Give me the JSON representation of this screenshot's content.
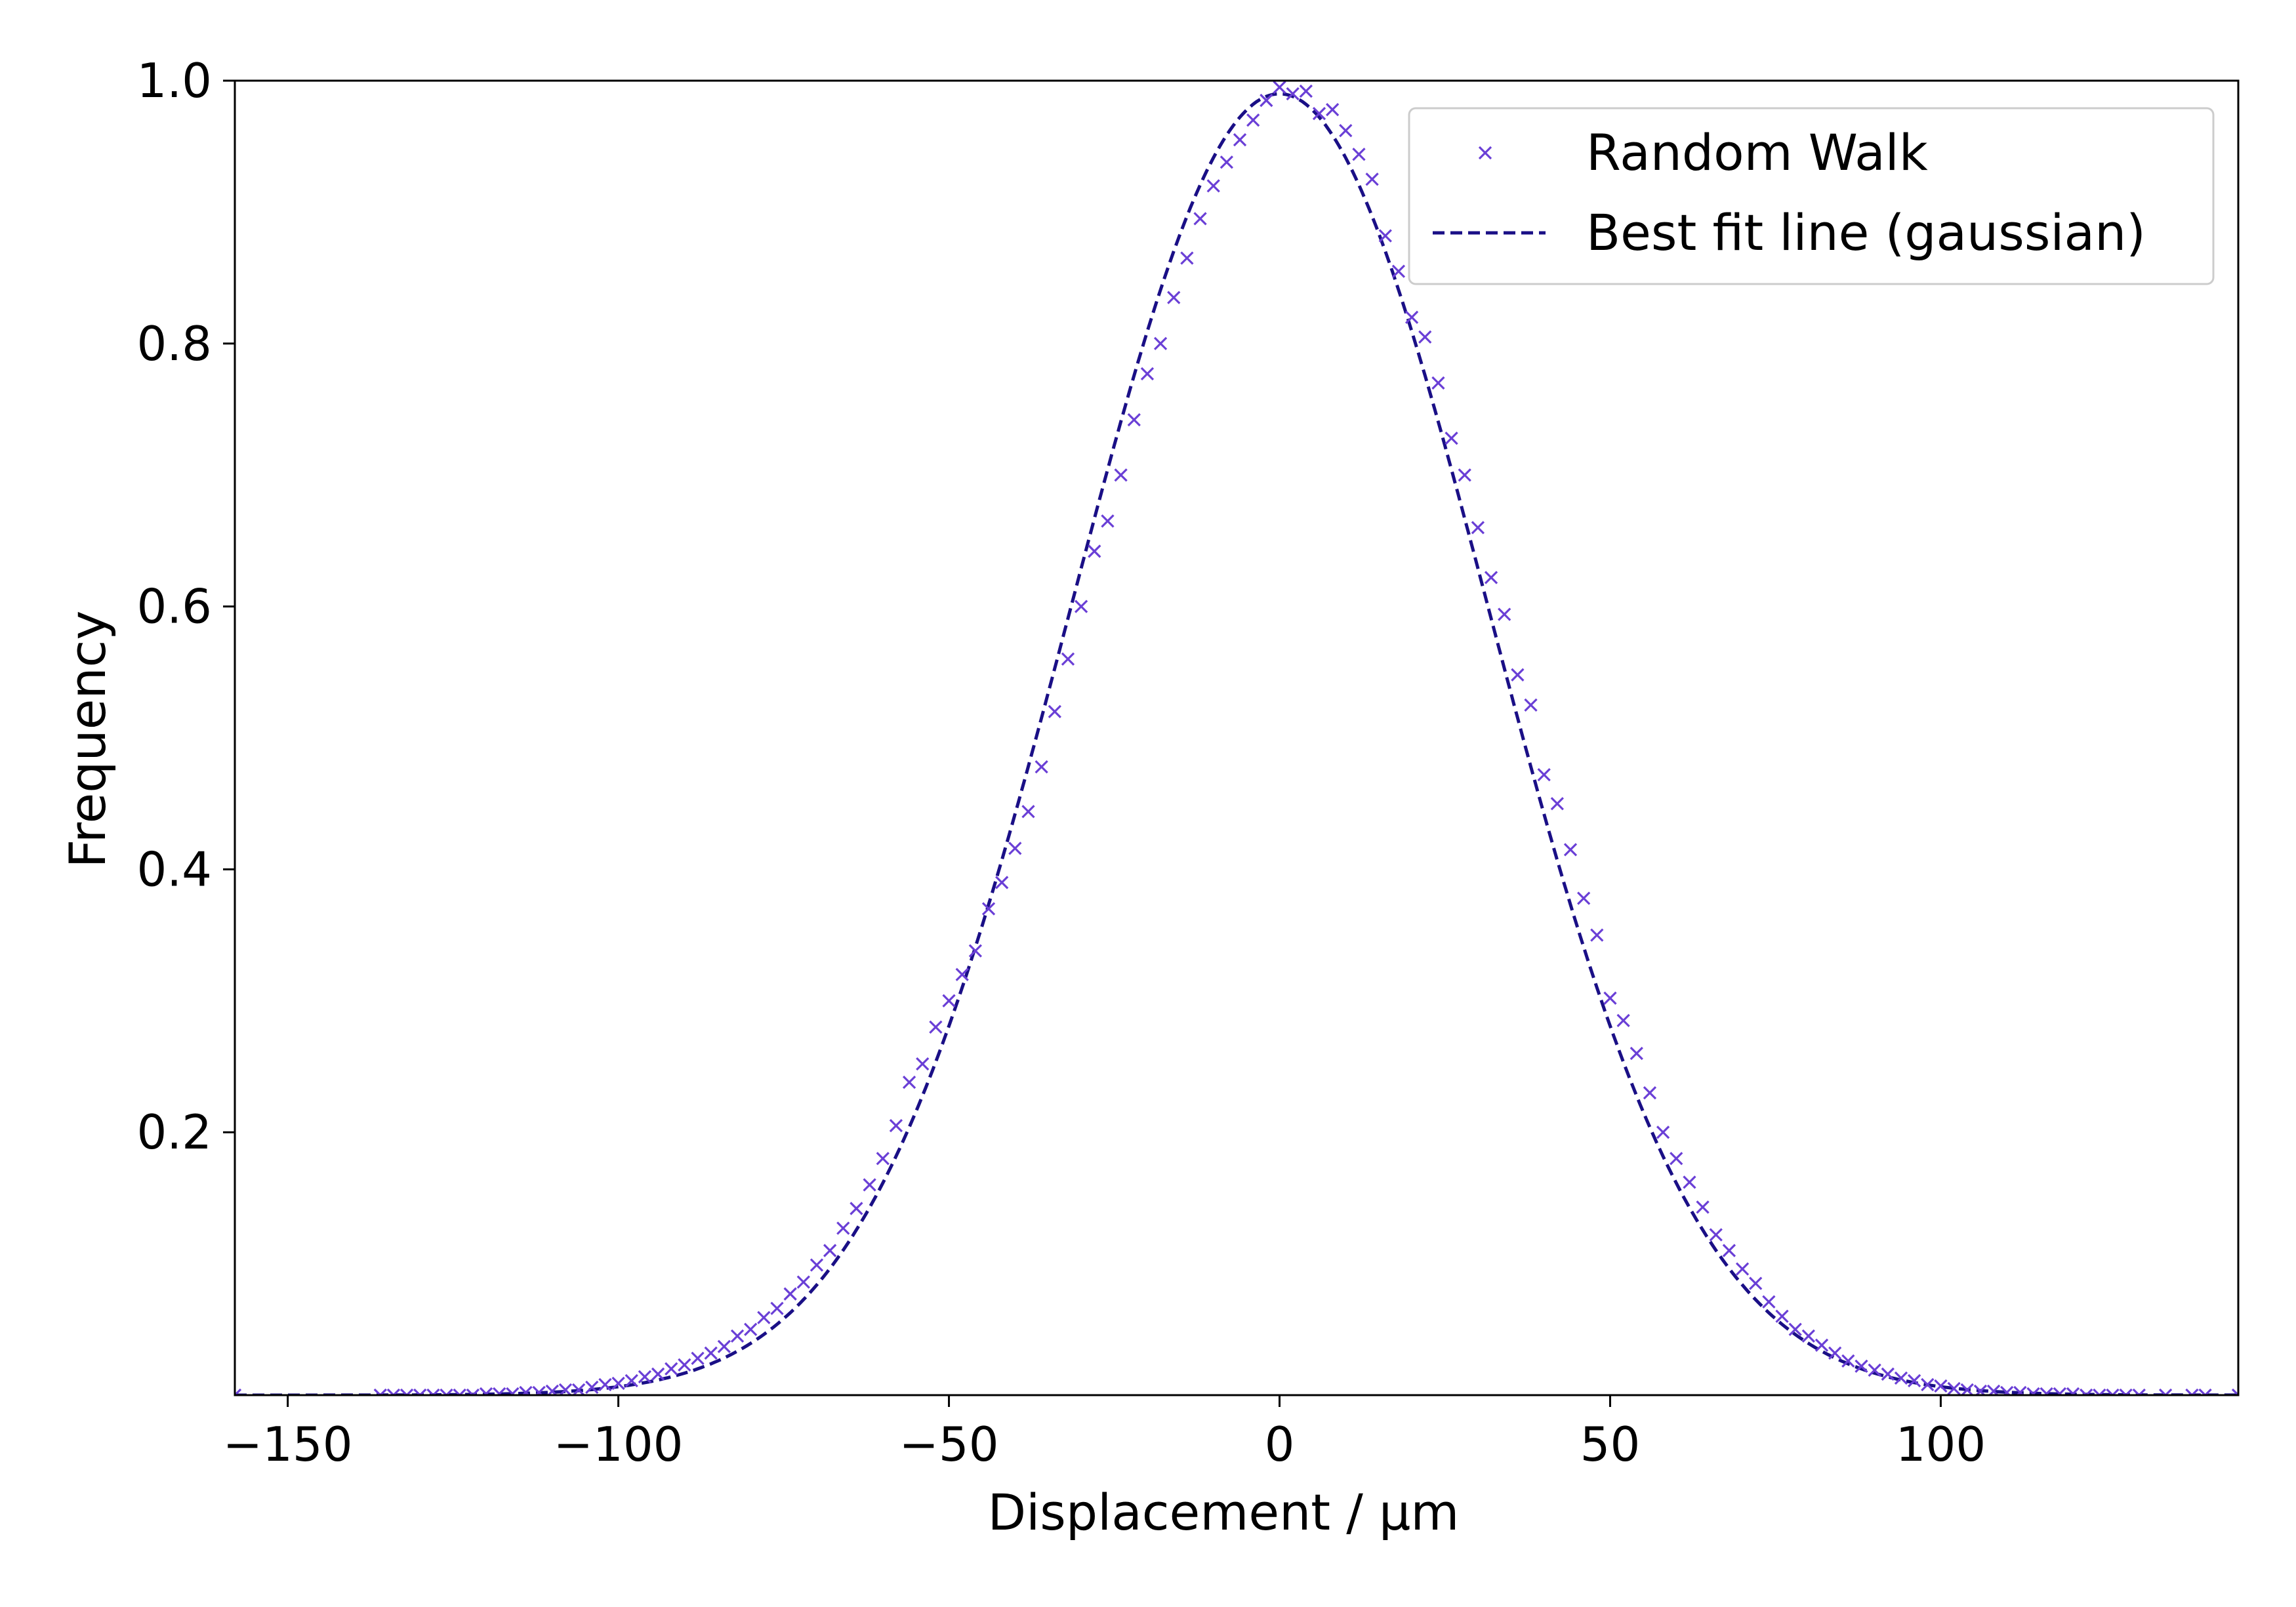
{
  "chart_data": {
    "type": "scatter",
    "title": "",
    "xlabel": "Displacement / μm",
    "ylabel": "Frequency",
    "xlim": [
      -158,
      145
    ],
    "ylim": [
      0.0,
      1.0
    ],
    "xticks": [
      -150,
      -100,
      -50,
      0,
      50,
      100
    ],
    "xtick_labels": [
      "−150",
      "−100",
      "−50",
      "0",
      "50",
      "100"
    ],
    "yticks": [
      0.2,
      0.4,
      0.6,
      0.8,
      1.0
    ],
    "ytick_labels": [
      "0.2",
      "0.4",
      "0.6",
      "0.8",
      "1.0"
    ],
    "grid": false,
    "legend_position": "top-right",
    "colors": {
      "random_walk": "#6a3fd6",
      "best_fit": "#1a0f86",
      "axes": "#000000"
    },
    "series": [
      {
        "name": "Random Walk",
        "kind": "markers",
        "marker": "x",
        "x": [
          -158,
          -136,
          -134,
          -132,
          -130,
          -128,
          -126,
          -124,
          -122,
          -120,
          -118,
          -116,
          -114,
          -112,
          -110,
          -108,
          -106,
          -104,
          -102,
          -100,
          -98,
          -96,
          -94,
          -92,
          -90,
          -88,
          -86,
          -84,
          -82,
          -80,
          -78,
          -76,
          -74,
          -72,
          -70,
          -68,
          -66,
          -64,
          -62,
          -60,
          -58,
          -56,
          -54,
          -52,
          -50,
          -48,
          -46,
          -44,
          -42,
          -40,
          -38,
          -36,
          -34,
          -32,
          -30,
          -28,
          -26,
          -24,
          -22,
          -20,
          -18,
          -16,
          -14,
          -12,
          -10,
          -8,
          -6,
          -4,
          -2,
          0,
          2,
          4,
          6,
          8,
          10,
          12,
          14,
          16,
          18,
          20,
          22,
          24,
          26,
          28,
          30,
          32,
          34,
          36,
          38,
          40,
          42,
          44,
          46,
          48,
          50,
          52,
          54,
          56,
          58,
          60,
          62,
          64,
          66,
          68,
          70,
          72,
          74,
          76,
          78,
          80,
          82,
          84,
          86,
          88,
          90,
          92,
          94,
          96,
          98,
          100,
          102,
          104,
          106,
          108,
          110,
          112,
          114,
          116,
          118,
          120,
          122,
          124,
          126,
          128,
          130,
          134,
          138,
          140,
          145
        ],
        "y": [
          0.0,
          0.0,
          0.0,
          0.0,
          0.0,
          0.0,
          0.0,
          0.0,
          0.0,
          0.001,
          0.001,
          0.001,
          0.002,
          0.002,
          0.003,
          0.004,
          0.004,
          0.006,
          0.008,
          0.009,
          0.011,
          0.014,
          0.016,
          0.02,
          0.023,
          0.028,
          0.032,
          0.037,
          0.045,
          0.05,
          0.059,
          0.066,
          0.077,
          0.086,
          0.099,
          0.11,
          0.127,
          0.142,
          0.16,
          0.18,
          0.205,
          0.238,
          0.252,
          0.28,
          0.3,
          0.32,
          0.338,
          0.37,
          0.39,
          0.416,
          0.444,
          0.478,
          0.52,
          0.56,
          0.6,
          0.642,
          0.665,
          0.7,
          0.742,
          0.777,
          0.8,
          0.835,
          0.865,
          0.895,
          0.92,
          0.938,
          0.955,
          0.97,
          0.985,
          0.995,
          0.99,
          0.992,
          0.975,
          0.978,
          0.962,
          0.944,
          0.925,
          0.882,
          0.855,
          0.82,
          0.805,
          0.77,
          0.728,
          0.7,
          0.66,
          0.622,
          0.594,
          0.548,
          0.525,
          0.472,
          0.45,
          0.415,
          0.378,
          0.35,
          0.302,
          0.285,
          0.26,
          0.23,
          0.2,
          0.18,
          0.162,
          0.143,
          0.122,
          0.11,
          0.096,
          0.085,
          0.071,
          0.06,
          0.05,
          0.045,
          0.038,
          0.032,
          0.026,
          0.022,
          0.019,
          0.016,
          0.013,
          0.011,
          0.008,
          0.007,
          0.005,
          0.004,
          0.003,
          0.003,
          0.002,
          0.002,
          0.001,
          0.001,
          0.001,
          0.001,
          0.0,
          0.0,
          0.0,
          0.0,
          0.0,
          0.0,
          0.0,
          0.0,
          0.0
        ]
      },
      {
        "name": "Best fit line (gaussian)",
        "kind": "line",
        "style": "dashed",
        "function": "gaussian",
        "amplitude": 0.99,
        "mean": 0.0,
        "sigma": 31.5
      }
    ]
  }
}
